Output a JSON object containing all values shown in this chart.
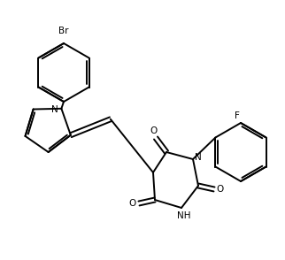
{
  "bg_color": "#ffffff",
  "line_color": "#000000",
  "lw": 1.4,
  "figsize": [
    3.22,
    2.94
  ],
  "dpi": 100,
  "br_label": "Br",
  "f_label": "F",
  "o_label": "O",
  "n_label": "N",
  "nh_label": "NH",
  "h_label": "H",
  "font_size": 7.5
}
